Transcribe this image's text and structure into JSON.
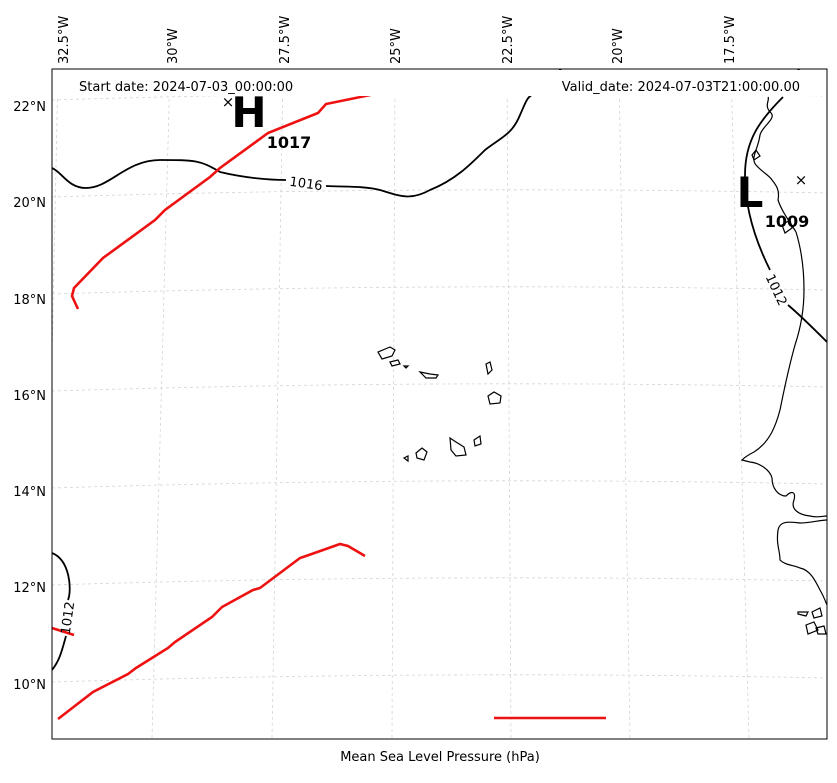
{
  "map": {
    "start_date": "Start date: 2024-07-03_00:00:00",
    "valid_date": "Valid_date: 2024-07-03T21:00:00.00",
    "xlabel": "Mean Sea Level Pressure (hPa)",
    "lon_labels": [
      "32.5°W",
      "30°W",
      "27.5°W",
      "25°W",
      "22.5°W",
      "20°W",
      "17.5°W"
    ],
    "lat_labels": [
      "22°N",
      "20°N",
      "18°N",
      "16°N",
      "14°N",
      "12°N",
      "10°N"
    ],
    "contour_labels": [
      "1016",
      "1012",
      "1012"
    ],
    "high": {
      "letter": "H",
      "value": "1017"
    },
    "low": {
      "letter": "L",
      "value": "1009"
    },
    "colors": {
      "front": "#ee1111",
      "isobar": "#000000",
      "grid": "#d0d0d0"
    }
  }
}
